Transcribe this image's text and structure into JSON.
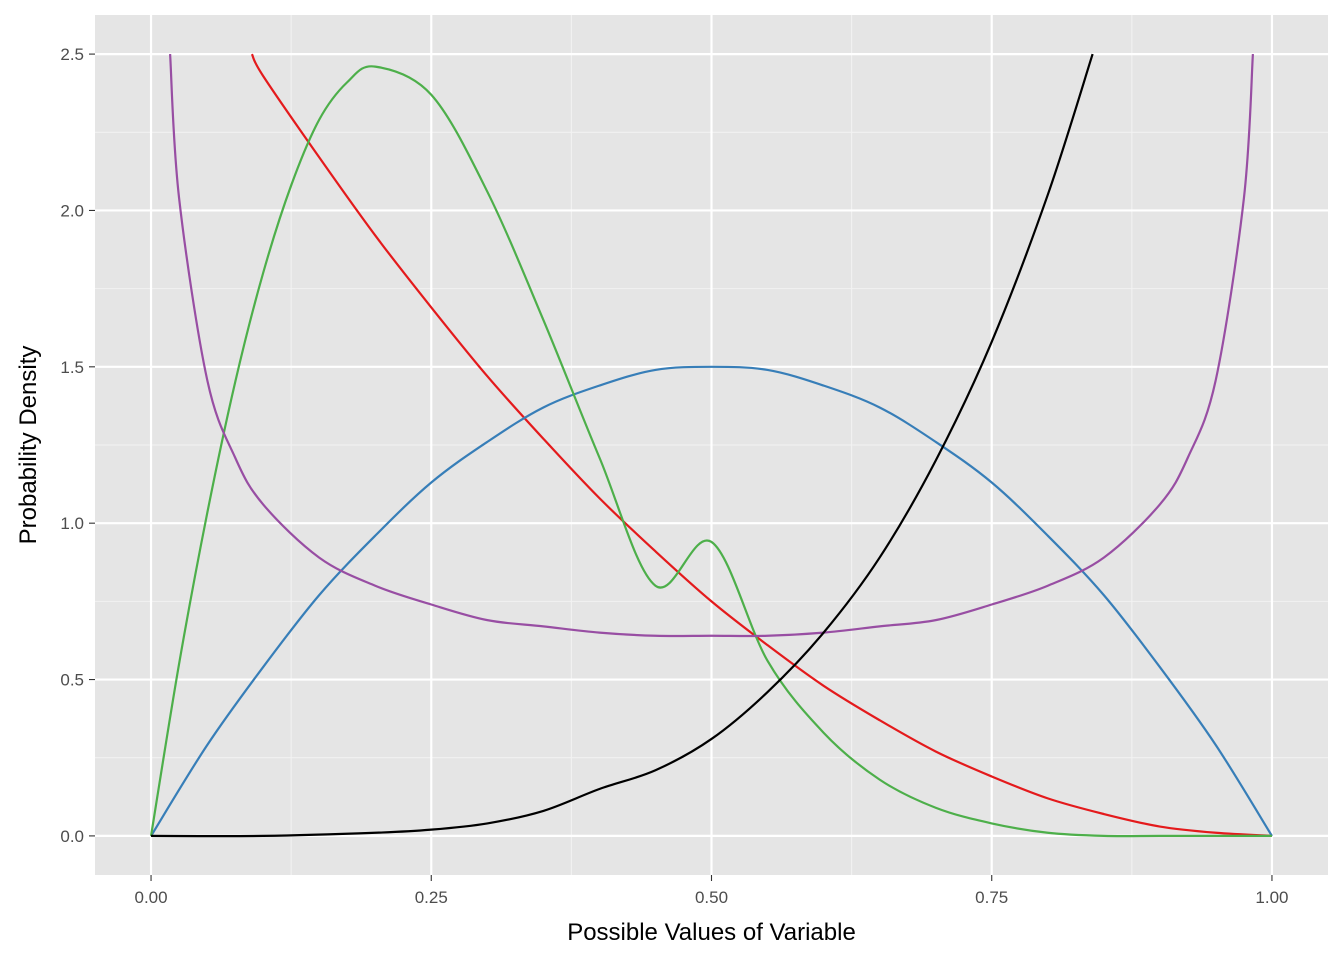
{
  "chart_data": {
    "type": "line",
    "title": "",
    "xlabel": "Possible Values of Variable",
    "ylabel": "Probability Density",
    "xlim": [
      -0.05,
      1.05
    ],
    "ylim": [
      -0.125,
      2.625
    ],
    "x_ticks": [
      0,
      0.25,
      0.5,
      0.75,
      1
    ],
    "x_tick_labels": [
      "0.00",
      "0.25",
      "0.50",
      "0.75",
      "1.00"
    ],
    "y_ticks": [
      0,
      0.5,
      1,
      1.5,
      2,
      2.5
    ],
    "y_tick_labels": [
      "0.0",
      "0.5",
      "1.0",
      "1.5",
      "2.0",
      "2.5"
    ],
    "grid": true,
    "legend": "none",
    "background": "#e5e5e5",
    "series": [
      {
        "color": "#e41a1c",
        "x": [
          0.09,
          0.1,
          0.15,
          0.2,
          0.25,
          0.3,
          0.35,
          0.4,
          0.45,
          0.5,
          0.55,
          0.6,
          0.65,
          0.7,
          0.75,
          0.8,
          0.85,
          0.9,
          0.95,
          1.0
        ],
        "y": [
          2.5,
          2.43,
          2.17,
          1.92,
          1.69,
          1.47,
          1.27,
          1.08,
          0.91,
          0.75,
          0.61,
          0.48,
          0.37,
          0.27,
          0.19,
          0.12,
          0.07,
          0.03,
          0.01,
          0.0
        ]
      },
      {
        "color": "#377eb8",
        "x": [
          0,
          0.05,
          0.1,
          0.15,
          0.2,
          0.25,
          0.3,
          0.35,
          0.4,
          0.45,
          0.5,
          0.55,
          0.6,
          0.65,
          0.7,
          0.75,
          0.8,
          0.85,
          0.9,
          0.95,
          1.0
        ],
        "y": [
          0,
          0.29,
          0.54,
          0.77,
          0.96,
          1.13,
          1.26,
          1.37,
          1.44,
          1.49,
          1.5,
          1.49,
          1.44,
          1.37,
          1.26,
          1.13,
          0.96,
          0.77,
          0.54,
          0.29,
          0
        ]
      },
      {
        "color": "#4daf4a",
        "x": [
          0,
          0.025,
          0.05,
          0.075,
          0.1,
          0.125,
          0.15,
          0.175,
          0.2,
          0.25,
          0.3,
          0.35,
          0.4,
          0.45,
          0.5,
          0.55,
          0.6,
          0.65,
          0.7,
          0.75,
          0.8,
          0.85,
          0.9,
          0.95,
          1.0
        ],
        "y": [
          0,
          0.55,
          1.03,
          1.45,
          1.8,
          2.08,
          2.29,
          2.41,
          2.46,
          2.37,
          2.06,
          1.65,
          1.21,
          0.8,
          0.94,
          0.56,
          0.33,
          0.18,
          0.09,
          0.04,
          0.01,
          0.0,
          0.0,
          0.0,
          0.0
        ]
      },
      {
        "color": "#984ea3",
        "x": [
          0.017,
          0.025,
          0.05,
          0.075,
          0.1,
          0.15,
          0.2,
          0.25,
          0.3,
          0.35,
          0.4,
          0.45,
          0.5,
          0.55,
          0.6,
          0.65,
          0.7,
          0.75,
          0.8,
          0.85,
          0.9,
          0.925,
          0.95,
          0.975,
          0.983
        ],
        "y": [
          2.5,
          2.04,
          1.46,
          1.21,
          1.06,
          0.89,
          0.8,
          0.74,
          0.69,
          0.67,
          0.65,
          0.64,
          0.64,
          0.64,
          0.65,
          0.67,
          0.69,
          0.74,
          0.8,
          0.89,
          1.06,
          1.21,
          1.46,
          2.04,
          2.5
        ]
      },
      {
        "color": "#000000",
        "x": [
          0,
          0.1,
          0.2,
          0.25,
          0.3,
          0.35,
          0.4,
          0.45,
          0.5,
          0.55,
          0.6,
          0.65,
          0.7,
          0.75,
          0.8,
          0.84
        ],
        "y": [
          0,
          0.0,
          0.01,
          0.02,
          0.04,
          0.08,
          0.15,
          0.21,
          0.31,
          0.46,
          0.65,
          0.89,
          1.2,
          1.58,
          2.05,
          2.5
        ]
      }
    ]
  }
}
